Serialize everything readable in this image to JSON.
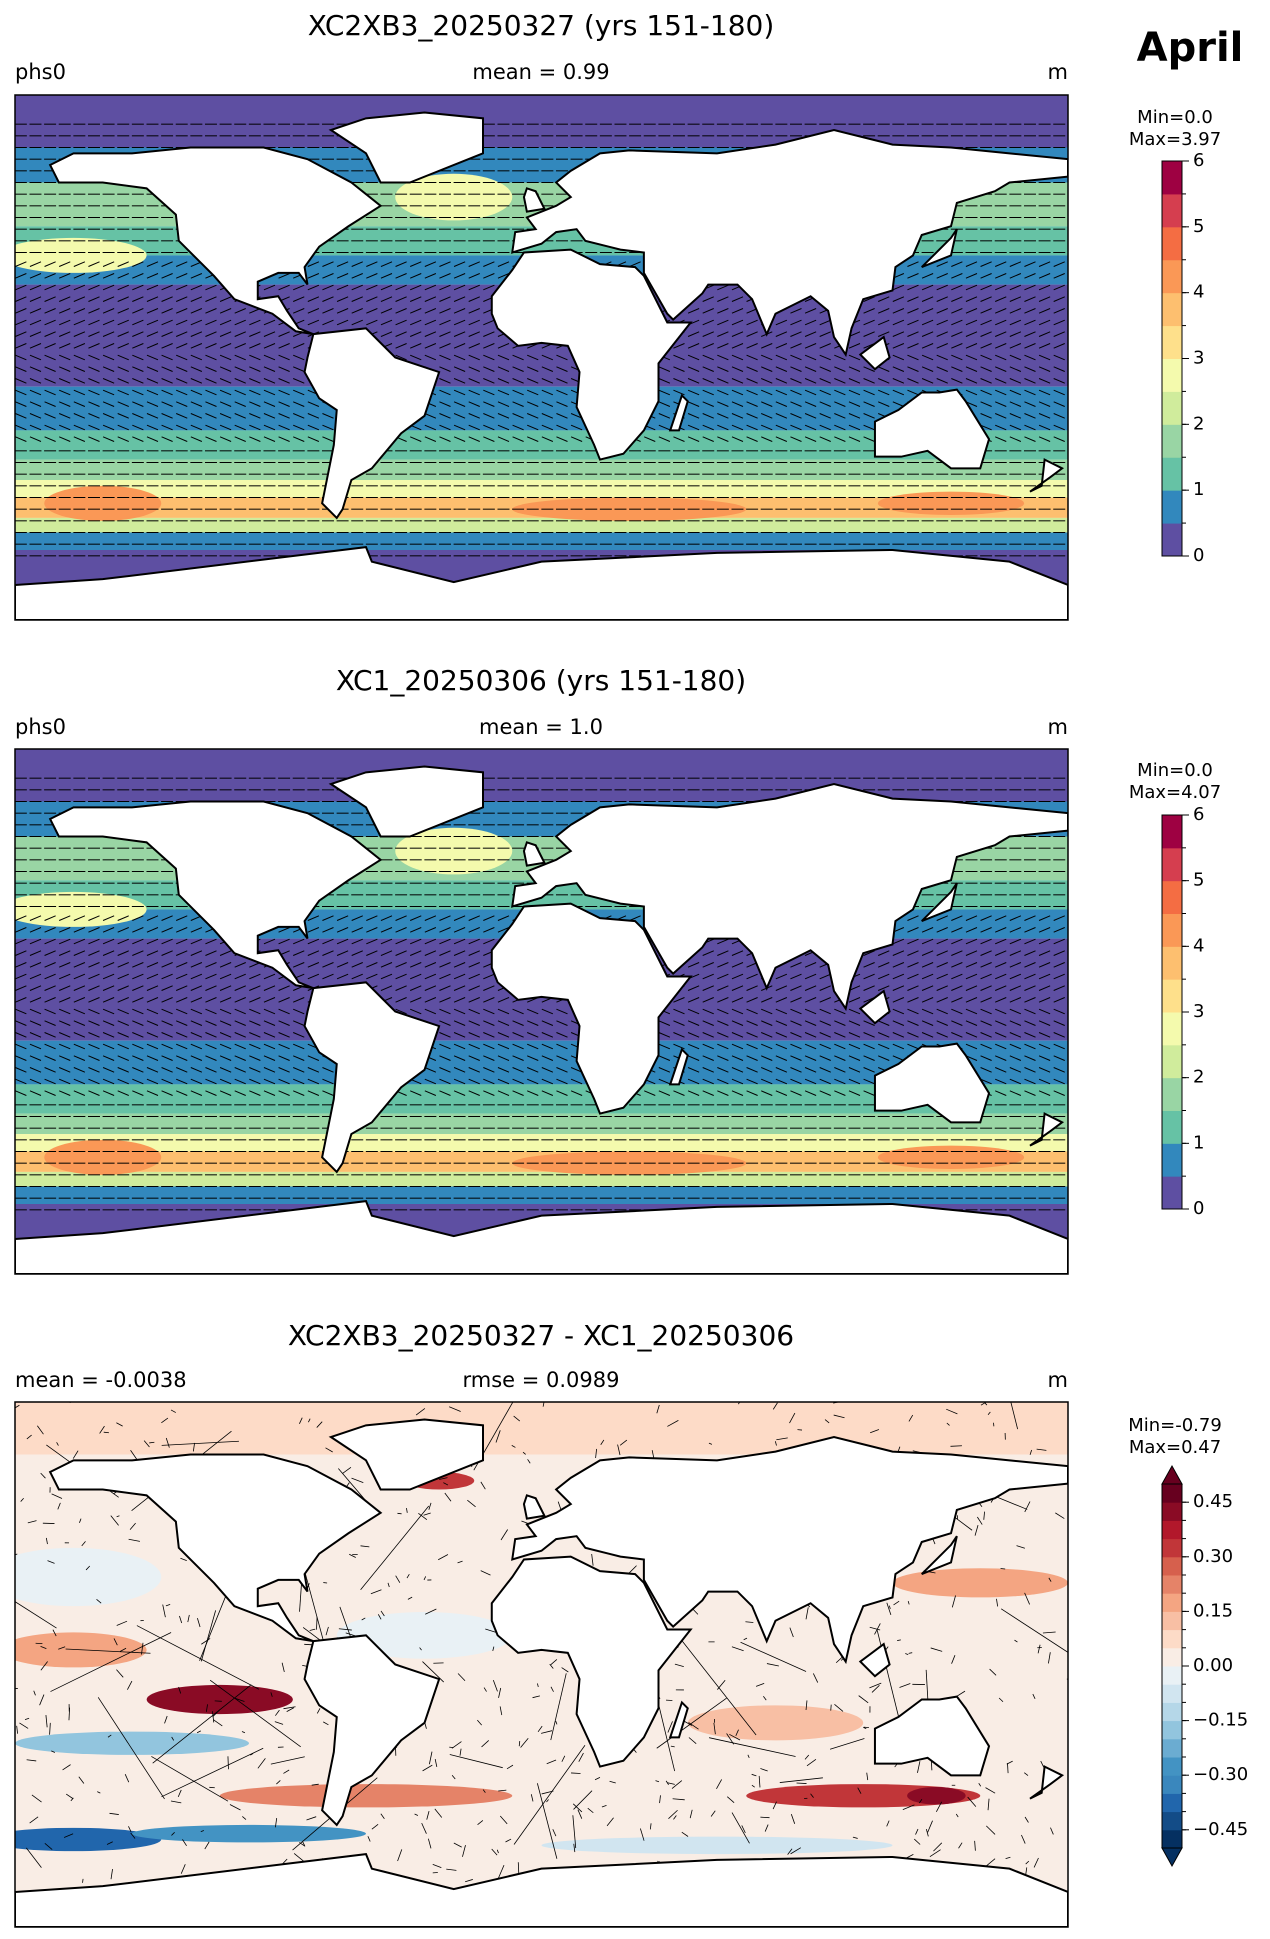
{
  "figure_label": "April",
  "panels": [
    {
      "title": "XC2XB3_20250327 (yrs 151-180)",
      "left": "phs0",
      "center": "mean = 0.99",
      "right": "m",
      "colorbar": {
        "min_label": "Min=0.0",
        "max_label": "Max=3.97",
        "lim": [
          0,
          6
        ],
        "ticks": [
          0,
          1,
          2,
          3,
          4,
          5,
          6
        ],
        "colors": [
          "#5e4fa2",
          "#3288bd",
          "#66c2a5",
          "#99d5a4",
          "#d0ec9c",
          "#f4faad",
          "#fee08b",
          "#fdbf6f",
          "#fa9856",
          "#f46d43",
          "#d53e4f",
          "#9e0142"
        ]
      }
    },
    {
      "title": "XC1_20250306 (yrs 151-180)",
      "left": "phs0",
      "center": "mean = 1.0",
      "right": "m",
      "colorbar": {
        "min_label": "Min=0.0",
        "max_label": "Max=4.07",
        "lim": [
          0,
          6
        ],
        "ticks": [
          0,
          1,
          2,
          3,
          4,
          5,
          6
        ],
        "colors": [
          "#5e4fa2",
          "#3288bd",
          "#66c2a5",
          "#99d5a4",
          "#d0ec9c",
          "#f4faad",
          "#fee08b",
          "#fdbf6f",
          "#fa9856",
          "#f46d43",
          "#d53e4f",
          "#9e0142"
        ]
      }
    },
    {
      "title": "XC2XB3_20250327 - XC1_20250306",
      "left": "mean = -0.0038",
      "center": "rmse = 0.0989",
      "right": "m",
      "colorbar": {
        "min_label": "Min=-0.79",
        "max_label": "Max=0.47",
        "lim": [
          -0.5,
          0.5
        ],
        "extend": "both",
        "ticks": [
          {
            "value": -0.45,
            "label": "−0.45"
          },
          {
            "value": -0.3,
            "label": "−0.30"
          },
          {
            "value": -0.15,
            "label": "−0.15"
          },
          {
            "value": 0,
            "label": "0.00"
          },
          0.15,
          {
            "value": 0.3,
            "label": "0.30"
          },
          0.45
        ],
        "colors": [
          "#053061",
          "#134c87",
          "#2166ac",
          "#3a87bd",
          "#4393c3",
          "#6bacd1",
          "#92c5de",
          "#b5d7e8",
          "#d1e5f0",
          "#e9f1f5",
          "#f9ede5",
          "#fddbc7",
          "#f8bfa4",
          "#f4a582",
          "#e58368",
          "#d6604d",
          "#c13639",
          "#b2182b",
          "#8a0b25",
          "#67001f"
        ]
      }
    }
  ]
}
